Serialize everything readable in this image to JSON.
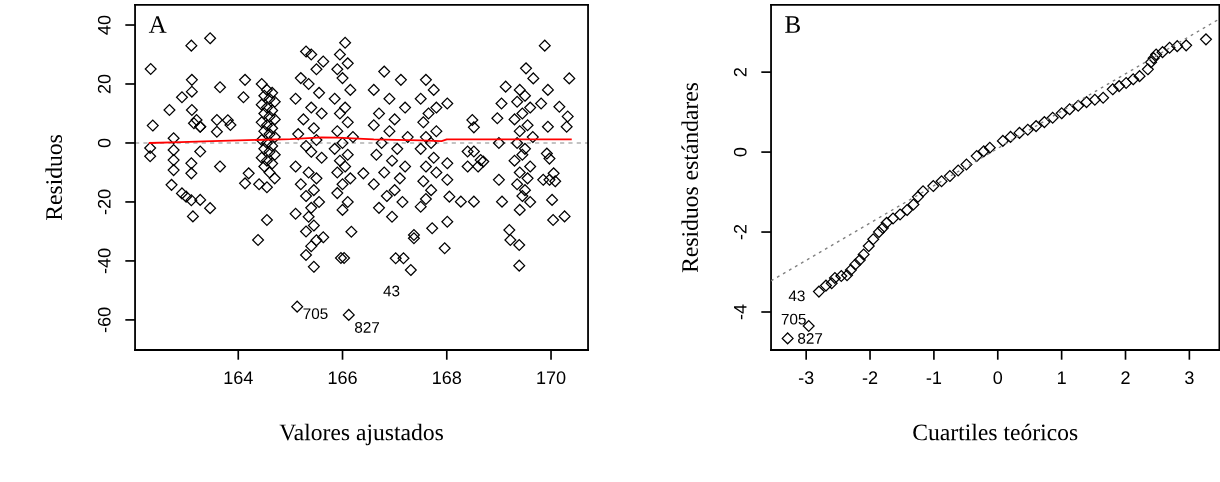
{
  "chart_data": [
    {
      "type": "scatter",
      "xlabel": "Valores ajustados",
      "ylabel": "Residuos",
      "xlim": [
        162.02,
        170.71
      ],
      "ylim": [
        -70.2,
        46.8
      ],
      "xticks": [
        164,
        166,
        168,
        170
      ],
      "yticks": [
        -60,
        -40,
        -20,
        0,
        20,
        40
      ],
      "grid": false,
      "marker": "diamond",
      "annotations": [
        "A",
        {
          "text": "705",
          "x": 165.13,
          "y": -55.5
        },
        {
          "text": "827",
          "x": 166.12,
          "y": -58.3
        },
        {
          "text": "43",
          "x": 167.31,
          "y": -43.1
        }
      ],
      "ref_lines": [
        {
          "axis": "y",
          "value": 0,
          "color": "#b0b0b0",
          "line_style": "dashed"
        }
      ],
      "series": [
        {
          "color": "#000000",
          "x": [
            162.32,
            163.1,
            163.46,
            162.36,
            162.31,
            162.31,
            162.68,
            162.92,
            163.11,
            163.11,
            163.11,
            163.15,
            163.27,
            162.76,
            162.76,
            162.76,
            162.76,
            162.72,
            162.92,
            163.0,
            163.1,
            163.13,
            163.27,
            163.46,
            163.1,
            163.1,
            163.27,
            163.27,
            163.2,
            163.65,
            163.59,
            163.59,
            163.8,
            163.85,
            163.65,
            164.13,
            164.1,
            164.13,
            164.2,
            164.38,
            164.55,
            164.45,
            164.55,
            164.65,
            164.5,
            164.6,
            164.7,
            164.45,
            164.55,
            164.65,
            164.5,
            164.6,
            164.7,
            164.45,
            164.55,
            164.65,
            164.5,
            164.6,
            164.7,
            164.45,
            164.55,
            164.65,
            164.5,
            164.6,
            164.7,
            164.45,
            164.55,
            164.65,
            164.5,
            164.6,
            164.7,
            164.4,
            164.55,
            165.3,
            165.4,
            165.5,
            165.2,
            165.35,
            165.55,
            165.1,
            165.4,
            165.6,
            165.25,
            165.45,
            165.15,
            165.5,
            165.3,
            165.4,
            165.6,
            165.1,
            165.35,
            165.5,
            165.2,
            165.45,
            165.3,
            165.55,
            165.4,
            165.1,
            165.35,
            165.45,
            165.3,
            165.5,
            165.4,
            165.3,
            165.45,
            165.63,
            165.63,
            165.13,
            166.05,
            165.95,
            166.1,
            165.9,
            166.0,
            166.15,
            165.85,
            166.05,
            165.95,
            166.1,
            165.9,
            166.2,
            166.0,
            165.85,
            166.1,
            165.95,
            166.05,
            165.9,
            166.15,
            166.0,
            165.9,
            166.1,
            166.0,
            165.97,
            166.03,
            166.17,
            166.4,
            166.12,
            166.8,
            167.12,
            166.6,
            166.9,
            167.2,
            166.7,
            167.0,
            166.6,
            166.9,
            167.25,
            166.75,
            167.05,
            166.65,
            166.95,
            167.2,
            166.8,
            167.1,
            166.6,
            167.0,
            166.85,
            167.15,
            166.7,
            166.95,
            167.02,
            167.17,
            167.31,
            167.37,
            167.37,
            167.6,
            167.75,
            167.5,
            167.8,
            167.65,
            167.55,
            167.8,
            167.6,
            167.7,
            167.5,
            167.75,
            167.6,
            167.8,
            167.55,
            167.7,
            167.6,
            167.5,
            167.72,
            168.01,
            168.01,
            168.01,
            168.01,
            167.96,
            168.05,
            168.27,
            168.49,
            168.52,
            168.52,
            168.4,
            168.4,
            168.52,
            168.6,
            168.65,
            168.7,
            168.97,
            169.05,
            169.13,
            169.0,
            169.0,
            169.06,
            169.4,
            169.5,
            169.35,
            169.6,
            169.45,
            169.3,
            169.55,
            169.4,
            169.65,
            169.35,
            169.5,
            169.45,
            169.3,
            169.6,
            169.4,
            169.55,
            169.35,
            169.5,
            169.45,
            169.6,
            169.4,
            169.2,
            169.22,
            169.39,
            169.39,
            169.52,
            169.66,
            169.88,
            169.81,
            169.94,
            170.16,
            170.32,
            170.3,
            170.35,
            169.94,
            169.92,
            169.97,
            170.05,
            170.08,
            170.02,
            170.04,
            169.97,
            170.26,
            169.85
          ],
          "values": [
            25.1,
            33.0,
            35.5,
            5.9,
            -1.7,
            -4.5,
            11.2,
            15.5,
            21.4,
            17.4,
            11.2,
            6.7,
            5.5,
            1.6,
            -2.4,
            -5.8,
            -9.2,
            -14.2,
            -17.1,
            -18.2,
            -19.4,
            -24.9,
            -19.3,
            -22.1,
            -10.3,
            -6.9,
            -2.9,
            5.5,
            7.8,
            18.9,
            7.8,
            3.8,
            7.7,
            6.1,
            -8.0,
            21.4,
            15.5,
            -13.7,
            -10.3,
            -32.9,
            -26.1,
            20,
            18,
            17,
            16,
            15,
            14,
            13,
            12,
            11,
            10,
            9,
            8,
            7,
            6,
            5,
            4,
            3,
            2,
            1,
            0,
            -1,
            -2,
            -3,
            -4,
            -5,
            -6,
            -7,
            -8,
            -10,
            -12,
            -14,
            -15,
            31,
            30,
            25,
            22,
            20,
            17,
            15,
            12,
            10,
            8,
            5,
            3,
            1,
            -1,
            -3,
            -5,
            -8,
            -10,
            -12,
            -14,
            -16,
            -18,
            -20,
            -22,
            -24,
            -25,
            -28,
            -30,
            -33,
            -35,
            -38,
            -42,
            27.6,
            -32,
            -55.5,
            34,
            30,
            27,
            25,
            22,
            18,
            15,
            12,
            10,
            7,
            4,
            2,
            0,
            -2,
            -4,
            -6,
            -8,
            -10,
            -12,
            -14,
            -17,
            -20,
            -22.7,
            -39,
            -39,
            -30.1,
            -10.3,
            -58.3,
            24.2,
            21.4,
            18,
            15,
            12,
            10,
            8,
            6,
            4,
            2,
            0,
            -2,
            -4,
            -6,
            -8,
            -10,
            -12,
            -14,
            -16,
            -18,
            -20,
            -22,
            -25,
            -39.1,
            -39.1,
            -43.1,
            -31.2,
            -32.3,
            21.4,
            18,
            15,
            12,
            10,
            7,
            4,
            2,
            0,
            -2,
            -5,
            -8,
            -10,
            -13,
            -16,
            -19,
            -21.6,
            -28.9,
            13.4,
            -6.9,
            -12.5,
            -26.7,
            -35.7,
            -18.2,
            -19.9,
            7.8,
            5.3,
            -19.9,
            -2.9,
            -8.0,
            -2.9,
            -8.0,
            -5.8,
            -6.3,
            8.4,
            13.4,
            19.1,
            0,
            -12.5,
            -19.9,
            18,
            16,
            14,
            12,
            10,
            8,
            6,
            4,
            2,
            0,
            -2,
            -4,
            -6,
            -8,
            -10,
            -12,
            -14,
            -16,
            -18,
            -20,
            -22.7,
            -29.5,
            -32.9,
            -34.6,
            -41.6,
            25.3,
            21.9,
            33.0,
            13.4,
            18.0,
            12.3,
            9.0,
            5.5,
            21.9,
            5.5,
            -3.6,
            -5.3,
            -10.3,
            -13.0,
            -19.3,
            -26.1,
            -12.5,
            -24.9,
            -12.5
          ]
        },
        {
          "type": "line",
          "color": "#ff0000",
          "line_style": "solid",
          "marker": "none",
          "x": [
            162.3,
            162.9,
            163.5,
            164.5,
            165.0,
            165.6,
            165.9,
            166.6,
            167.5,
            167.9,
            168.0,
            170.38
          ],
          "values": [
            0,
            0.3,
            0.6,
            1.1,
            1.3,
            1.9,
            1.8,
            1.2,
            0.9,
            0.6,
            1.2,
            1.2
          ]
        }
      ]
    },
    {
      "type": "scatter",
      "xlabel": "Cuartiles teóricos",
      "ylabel": "Residuos estándares",
      "xlim": [
        -3.55,
        3.47
      ],
      "ylim": [
        -4.95,
        3.68
      ],
      "xticks": [
        -3,
        -2,
        -1,
        0,
        1,
        2,
        3
      ],
      "yticks": [
        -4,
        -2,
        0,
        2
      ],
      "grid": false,
      "marker": "diamond",
      "annotations": [
        "B",
        {
          "text": "43",
          "x": -2.8,
          "y": -3.49
        },
        {
          "text": "705",
          "x": -2.96,
          "y": -4.35
        },
        {
          "text": "827",
          "x": -3.29,
          "y": -4.66
        }
      ],
      "series": [
        {
          "type": "line",
          "color": "#808080",
          "line_style": "dotted",
          "marker": "none",
          "x": [
            -3.55,
            3.47
          ],
          "values": [
            -3.22,
            3.33
          ]
        },
        {
          "color": "#000000",
          "x": [
            -3.29,
            -2.96,
            -2.8,
            -2.69,
            -2.6,
            -2.55,
            -2.45,
            -2.36,
            -2.3,
            -2.23,
            -2.16,
            -2.1,
            -2.02,
            -1.95,
            -1.86,
            -1.8,
            -1.74,
            -1.64,
            -1.53,
            -1.42,
            -1.32,
            -1.25,
            -1.17,
            -1.01,
            -0.88,
            -0.75,
            -0.62,
            -0.49,
            -0.33,
            -0.22,
            -0.125,
            0.08,
            0.2,
            0.34,
            0.47,
            0.6,
            0.73,
            0.86,
            1.0,
            1.125,
            1.26,
            1.39,
            1.52,
            1.65,
            1.8,
            1.9,
            2.01,
            2.12,
            2.22,
            2.35,
            2.4,
            2.44,
            2.48,
            2.58,
            2.69,
            2.81,
            2.95,
            3.26
          ],
          "values": [
            -4.66,
            -4.35,
            -3.49,
            -3.34,
            -3.28,
            -3.15,
            -3.1,
            -3.08,
            -2.95,
            -2.81,
            -2.7,
            -2.56,
            -2.35,
            -2.18,
            -2.0,
            -1.9,
            -1.77,
            -1.66,
            -1.56,
            -1.45,
            -1.31,
            -1.12,
            -0.98,
            -0.85,
            -0.73,
            -0.6,
            -0.46,
            -0.31,
            -0.1,
            0.02,
            0.11,
            0.28,
            0.38,
            0.48,
            0.56,
            0.65,
            0.75,
            0.86,
            0.97,
            1.07,
            1.16,
            1.25,
            1.31,
            1.36,
            1.57,
            1.65,
            1.73,
            1.82,
            1.9,
            2.07,
            2.25,
            2.35,
            2.44,
            2.5,
            2.61,
            2.65,
            2.67,
            2.82
          ]
        }
      ]
    }
  ]
}
